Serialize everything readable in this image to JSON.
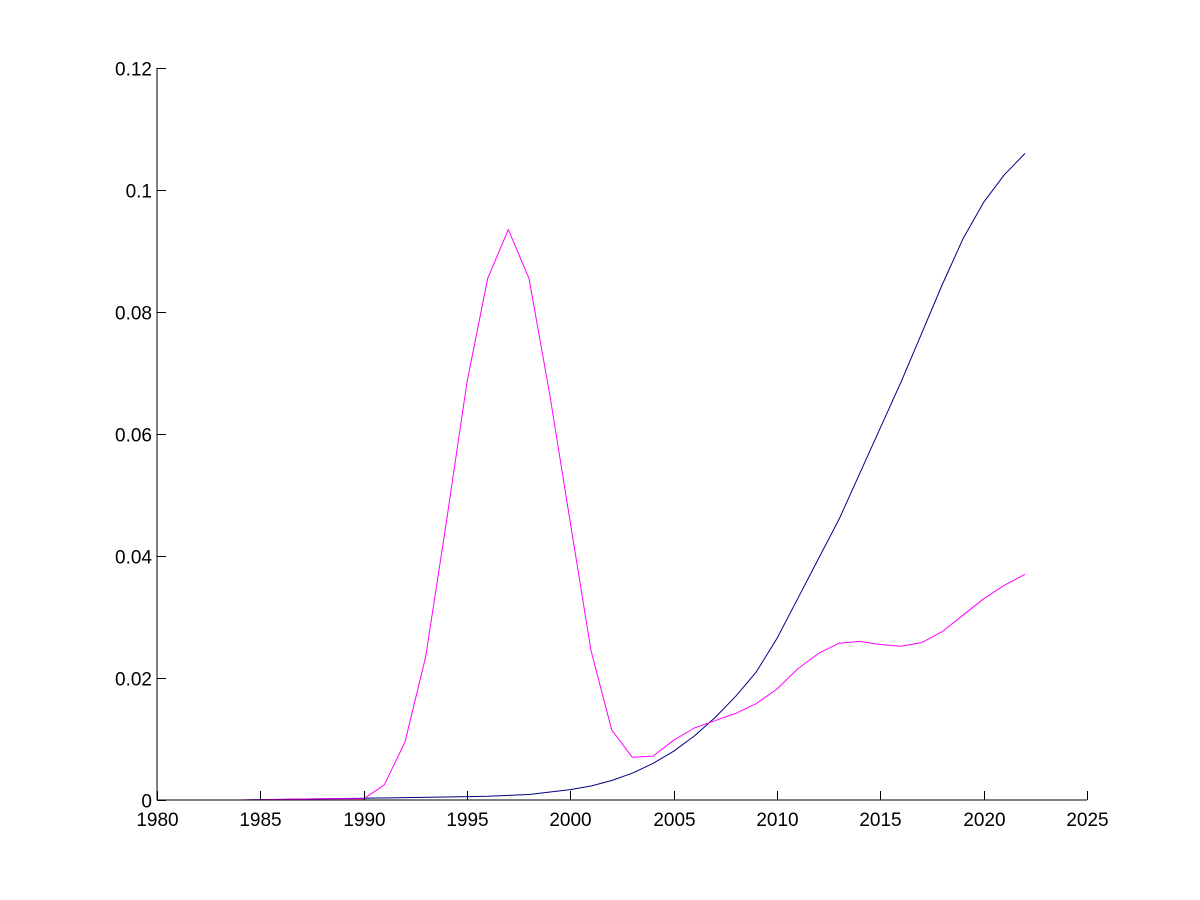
{
  "chart_data": {
    "type": "line",
    "title": "",
    "xlabel": "",
    "ylabel": "",
    "xlim": [
      1980,
      2025
    ],
    "ylim": [
      0,
      0.12
    ],
    "x_ticks": [
      1980,
      1985,
      1990,
      1995,
      2000,
      2005,
      2010,
      2015,
      2020,
      2025
    ],
    "y_ticks": [
      0,
      0.02,
      0.04,
      0.06,
      0.08,
      0.1,
      0.12
    ],
    "x_tick_labels": [
      "1980",
      "1985",
      "1990",
      "1995",
      "2000",
      "2005",
      "2010",
      "2015",
      "2020",
      "2025"
    ],
    "y_tick_labels": [
      "0",
      "0.02",
      "0.04",
      "0.06",
      "0.08",
      "0.1",
      "0.12"
    ],
    "grid": false,
    "legend": "none",
    "series": [
      {
        "color": "#000080",
        "x": [
          1980,
          1982,
          1984,
          1986,
          1988,
          1990,
          1992,
          1994,
          1996,
          1998,
          2000,
          2001,
          2002,
          2003,
          2004,
          2005,
          2006,
          2007,
          2008,
          2009,
          2010,
          2011,
          2012,
          2013,
          2014,
          2015,
          2016,
          2017,
          2018,
          2019,
          2020,
          2021,
          2022
        ],
        "y": [
          0,
          0,
          0,
          0.0001,
          0.0002,
          0.0003,
          0.0004,
          0.0005,
          0.0006,
          0.0009,
          0.0017,
          0.0023,
          0.0032,
          0.0044,
          0.006,
          0.008,
          0.0105,
          0.0135,
          0.017,
          0.021,
          0.0265,
          0.033,
          0.0395,
          0.046,
          0.0535,
          0.061,
          0.0685,
          0.0765,
          0.0845,
          0.092,
          0.098,
          0.1025,
          0.106
        ]
      },
      {
        "color": "#ff00ff",
        "x": [
          1980,
          1982,
          1984,
          1986,
          1988,
          1989,
          1990,
          1991,
          1992,
          1993,
          1994,
          1995,
          1996,
          1997,
          1998,
          1999,
          2000,
          2001,
          2002,
          2003,
          2004,
          2005,
          2006,
          2007,
          2008,
          2009,
          2010,
          2011,
          2012,
          2013,
          2014,
          2015,
          2016,
          2017,
          2018,
          2019,
          2020,
          2021,
          2022
        ],
        "y": [
          0,
          0,
          0,
          0.0001,
          0.0002,
          0.0002,
          0.0002,
          0.0025,
          0.0095,
          0.0235,
          0.0455,
          0.0685,
          0.0855,
          0.0935,
          0.0855,
          0.0665,
          0.0455,
          0.0245,
          0.0115,
          0.007,
          0.0072,
          0.0098,
          0.0118,
          0.013,
          0.0142,
          0.0158,
          0.0182,
          0.0215,
          0.024,
          0.0257,
          0.026,
          0.0255,
          0.0252,
          0.0258,
          0.0276,
          0.0303,
          0.033,
          0.0352,
          0.037
        ]
      }
    ]
  }
}
